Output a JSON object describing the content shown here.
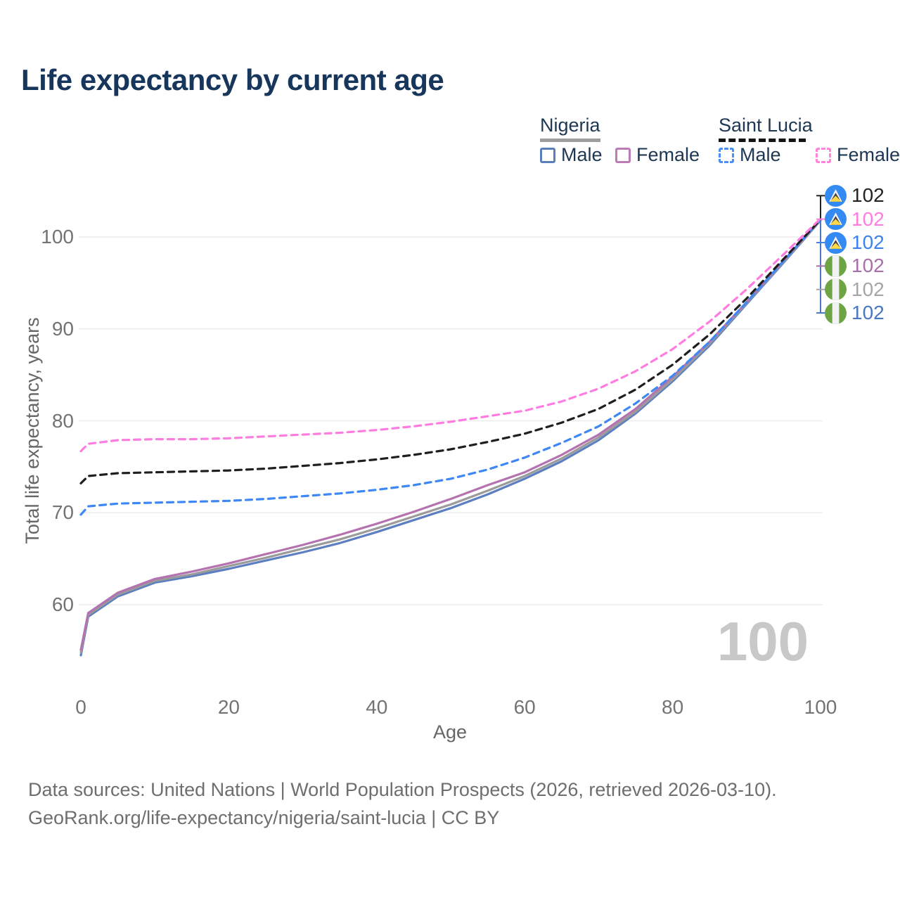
{
  "title": "Life expectancy by current age",
  "legend": {
    "groups": [
      {
        "name": "Nigeria",
        "line_style": "solid",
        "underline_color": "#9e9e9e",
        "items": [
          {
            "label": "Male",
            "color": "#5b7fbd"
          },
          {
            "label": "Female",
            "color": "#bd7cb5"
          }
        ]
      },
      {
        "name": "Saint Lucia",
        "line_style": "dashed",
        "underline_color": "#141414",
        "items": [
          {
            "label": "Male",
            "color": "#4a90f4"
          },
          {
            "label": "Female",
            "color": "#ff85e0"
          }
        ]
      }
    ]
  },
  "watermark_current_age": "100",
  "callouts": [
    {
      "flag": "saint-lucia",
      "value": "102",
      "color": "#232323"
    },
    {
      "flag": "saint-lucia",
      "value": "102",
      "color": "#ff7ce1"
    },
    {
      "flag": "saint-lucia",
      "value": "102",
      "color": "#3e82f0"
    },
    {
      "flag": "nigeria",
      "value": "102",
      "color": "#a86fa8"
    },
    {
      "flag": "nigeria",
      "value": "102",
      "color": "#a6a6a6"
    },
    {
      "flag": "nigeria",
      "value": "102",
      "color": "#4a77c4"
    }
  ],
  "chart_data": {
    "type": "line",
    "title": "Life expectancy by current age",
    "xlabel": "Age",
    "ylabel": "Total life expectancy, years",
    "xlim": [
      0,
      100
    ],
    "ylim": [
      54,
      103
    ],
    "xticks": [
      0,
      20,
      40,
      60,
      80,
      100
    ],
    "yticks": [
      60,
      70,
      80,
      90,
      100
    ],
    "grid": true,
    "legend_position": "top-right",
    "x": [
      0,
      1,
      5,
      10,
      15,
      20,
      25,
      30,
      35,
      40,
      45,
      50,
      55,
      60,
      65,
      70,
      75,
      80,
      85,
      90,
      95,
      100
    ],
    "series": [
      {
        "name": "Nigeria Male",
        "color": "#5b7fc0",
        "dash": false,
        "values": [
          54.5,
          58.7,
          60.9,
          62.4,
          63.1,
          63.9,
          64.8,
          65.7,
          66.7,
          67.9,
          69.2,
          70.5,
          72.0,
          73.7,
          75.6,
          77.9,
          80.8,
          84.3,
          88.2,
          92.7,
          97.2,
          101.8
        ]
      },
      {
        "name": "Nigeria All",
        "color": "#9b9b9b",
        "dash": false,
        "values": [
          54.8,
          58.9,
          61.1,
          62.6,
          63.3,
          64.2,
          65.1,
          66.1,
          67.1,
          68.3,
          69.6,
          70.9,
          72.4,
          74.0,
          75.9,
          78.2,
          81.0,
          84.5,
          88.4,
          92.8,
          97.3,
          101.8
        ]
      },
      {
        "name": "Nigeria Female",
        "color": "#b473b0",
        "dash": false,
        "values": [
          55.1,
          59.1,
          61.3,
          62.8,
          63.6,
          64.5,
          65.5,
          66.5,
          67.6,
          68.8,
          70.1,
          71.5,
          73.0,
          74.4,
          76.3,
          78.5,
          81.3,
          84.8,
          88.6,
          92.9,
          97.4,
          101.9
        ]
      },
      {
        "name": "Saint Lucia Male",
        "color": "#3e87f5",
        "dash": true,
        "values": [
          69.8,
          70.7,
          71.0,
          71.1,
          71.2,
          71.3,
          71.5,
          71.8,
          72.1,
          72.5,
          73.0,
          73.7,
          74.7,
          76.0,
          77.6,
          79.4,
          81.9,
          84.9,
          88.6,
          92.9,
          97.4,
          101.9
        ]
      },
      {
        "name": "Saint Lucia All",
        "color": "#1f1f1f",
        "dash": true,
        "values": [
          73.2,
          74.0,
          74.3,
          74.4,
          74.5,
          74.6,
          74.8,
          75.1,
          75.4,
          75.8,
          76.3,
          76.9,
          77.7,
          78.6,
          79.8,
          81.3,
          83.4,
          86.1,
          89.4,
          93.3,
          97.6,
          101.9
        ]
      },
      {
        "name": "Saint Lucia Female",
        "color": "#ff7ce1",
        "dash": true,
        "values": [
          76.7,
          77.5,
          77.9,
          78.0,
          78.0,
          78.1,
          78.3,
          78.5,
          78.7,
          79.0,
          79.4,
          79.9,
          80.5,
          81.1,
          82.1,
          83.5,
          85.4,
          87.8,
          90.8,
          94.3,
          98.1,
          102.0
        ]
      }
    ],
    "end_value_labels": [
      "102",
      "102",
      "102",
      "102",
      "102",
      "102"
    ]
  },
  "colors": {
    "grid": "#ececec",
    "axis_text": "#737373"
  },
  "footer": {
    "line1": "Data sources: United Nations | World Population Prospects (2026, retrieved 2026-03-10).",
    "line2": "GeoRank.org/life-expectancy/nigeria/saint-lucia | CC BY"
  }
}
